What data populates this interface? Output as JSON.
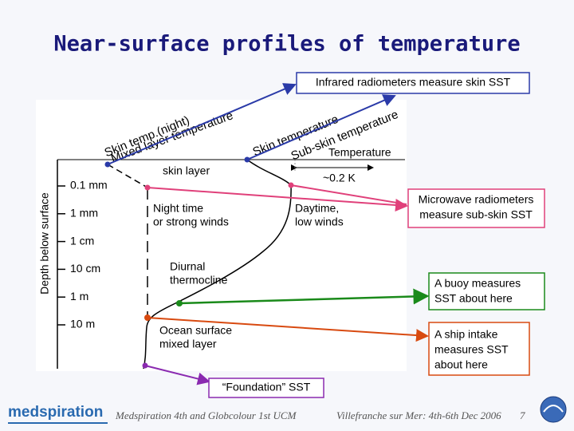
{
  "header": {
    "title": "Near-surface profiles of temperature"
  },
  "callouts": {
    "infrared": "Infrared radiometers measure skin SST",
    "microwave": [
      "Microwave radiometers",
      "measure sub-skin SST"
    ],
    "buoy": [
      "A buoy measures",
      "SST about here"
    ],
    "ship": [
      "A ship intake",
      "measures SST",
      "about here"
    ],
    "foundation": "“Foundation” SST"
  },
  "diagram": {
    "axis_label": "Depth below surface",
    "depths": [
      "0.1 mm",
      "1 mm",
      "1 cm",
      "10 cm",
      "1 m",
      "10 m"
    ],
    "curve_labels": [
      "Skin temp.(night)",
      "Mixed layer temperature",
      "Skin temperature",
      "Sub-skin temperature"
    ],
    "temperature": "Temperature",
    "delta": "~0.2 K",
    "skin_layer": "skin layer",
    "night": [
      "Night time",
      "or strong winds"
    ],
    "day": [
      "Daytime,",
      "low winds"
    ],
    "thermocline": [
      "Diurnal",
      "thermocline"
    ],
    "mixed": [
      "Ocean surface",
      "mixed layer"
    ]
  },
  "footer": {
    "logo": "medspiration",
    "event": "Medspiration 4th and Globcolour 1st UCM",
    "place": "Villefranche sur Mer: 4th-6th Dec 2006",
    "page": "7"
  }
}
